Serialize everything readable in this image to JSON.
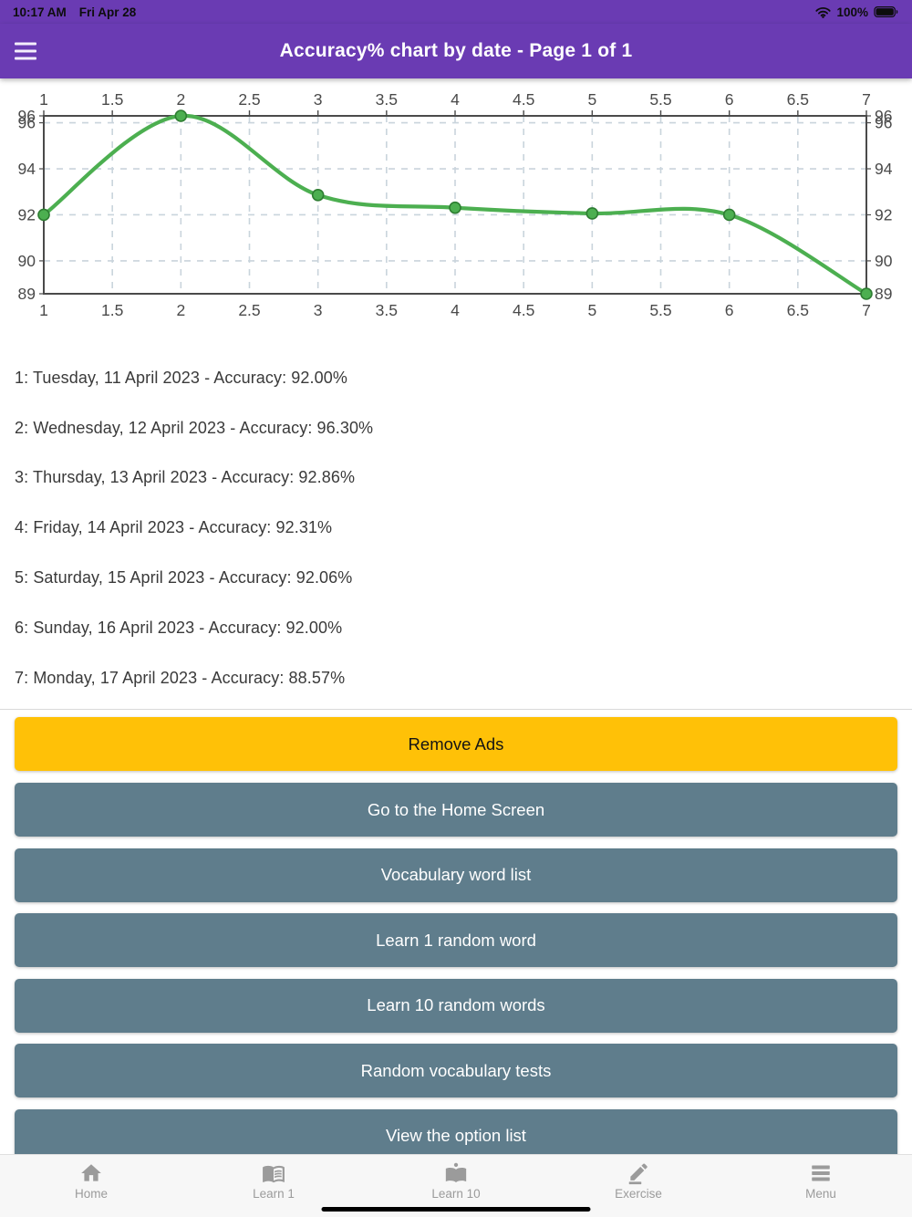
{
  "status_bar": {
    "time": "10:17 AM",
    "date": "Fri Apr 28",
    "battery_percent": "100%"
  },
  "header": {
    "title": "Accuracy% chart by date - Page 1 of 1"
  },
  "chart_data": {
    "type": "line",
    "x": [
      1,
      2,
      3,
      4,
      5,
      6,
      7
    ],
    "values": [
      92.0,
      96.3,
      92.86,
      92.31,
      92.06,
      92.0,
      88.57
    ],
    "series_name": "Accuracy%",
    "xlim": [
      1,
      7
    ],
    "ylim": [
      88.57,
      96.3
    ],
    "x_ticks": [
      1,
      1.5,
      2,
      2.5,
      3,
      3.5,
      4,
      4.5,
      5,
      5.5,
      6,
      6.5,
      7
    ],
    "y_gridlines": [
      90,
      92,
      94,
      96
    ],
    "y_edge_labels": {
      "top": "96",
      "bottom": "89"
    },
    "x_labels_position": "both",
    "y_labels_position": "both",
    "grid": true,
    "smooth": true,
    "line_color": "#4CAF50",
    "marker_fill": "#4CAF50",
    "marker_stroke": "#2E7D32",
    "grid_color": "#c9d4dc",
    "axis_color": "#4a4a4a",
    "tick_label_color": "#4a4a4a"
  },
  "accuracy_list": [
    "1: Tuesday, 11 April 2023 - Accuracy: 92.00%",
    "2: Wednesday, 12 April 2023 - Accuracy: 96.30%",
    "3: Thursday, 13 April 2023 - Accuracy: 92.86%",
    "4: Friday, 14 April 2023 - Accuracy: 92.31%",
    "5: Saturday, 15 April 2023 - Accuracy: 92.06%",
    "6: Sunday, 16 April 2023 - Accuracy: 92.00%",
    "7: Monday, 17 April 2023 - Accuracy: 88.57%"
  ],
  "actions": {
    "remove_ads_label": "Remove Ads",
    "remove_ads_color": "#FFC107",
    "menu_button_color": "#5F7D8C",
    "menu_buttons": [
      "Go to the Home Screen",
      "Vocabulary word list",
      "Learn 1 random word",
      "Learn 10 random words",
      "Random vocabulary tests",
      "View the option list"
    ]
  },
  "tab_bar": {
    "items": [
      {
        "label": "Home",
        "icon": "home-icon"
      },
      {
        "label": "Learn 1",
        "icon": "open-book-icon"
      },
      {
        "label": "Learn 10",
        "icon": "book-bookmark-icon"
      },
      {
        "label": "Exercise",
        "icon": "pencil-icon"
      },
      {
        "label": "Menu",
        "icon": "menu-icon"
      }
    ]
  }
}
